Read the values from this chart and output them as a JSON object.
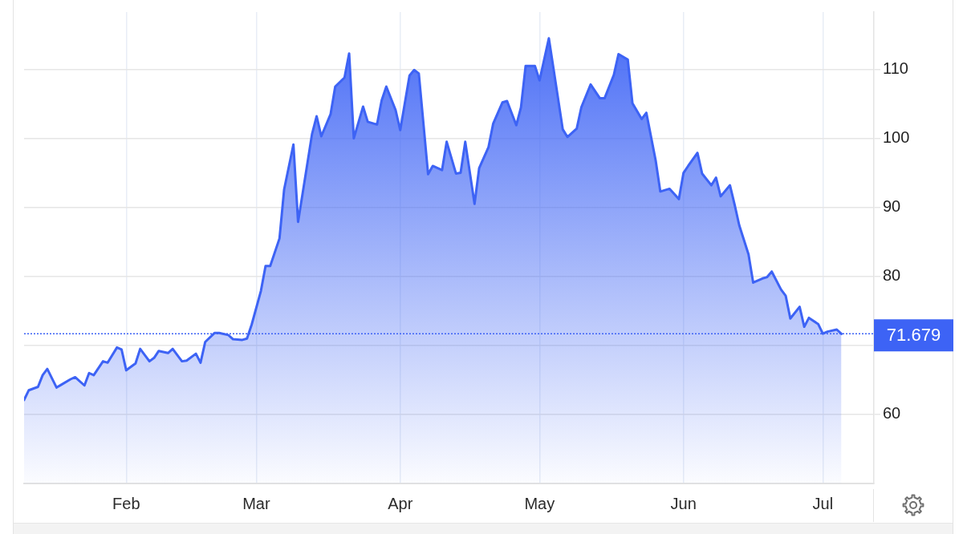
{
  "chart_data": {
    "type": "area",
    "color": "#3d63f5",
    "x": [
      "--01-10",
      "--01-11",
      "--01-13",
      "--01-14",
      "--01-15",
      "--01-17",
      "--01-18",
      "--01-20",
      "--01-21",
      "--01-23",
      "--01-24",
      "--01-25",
      "--01-27",
      "--01-28",
      "--01-30",
      "--01-31",
      "--02-01",
      "--02-03",
      "--02-04",
      "--02-06",
      "--02-07",
      "--02-08",
      "--02-10",
      "--02-11",
      "--02-13",
      "--02-14",
      "--02-16",
      "--02-17",
      "--02-18",
      "--02-20",
      "--02-21",
      "--02-23",
      "--02-24",
      "--02-26",
      "--02-27",
      "--02-28",
      "--03-02",
      "--03-03",
      "--03-04",
      "--03-06",
      "--03-07",
      "--03-09",
      "--03-10",
      "--03-11",
      "--03-13",
      "--03-14",
      "--03-15",
      "--03-17",
      "--03-18",
      "--03-20",
      "--03-21",
      "--03-22",
      "--03-24",
      "--03-25",
      "--03-27",
      "--03-28",
      "--03-29",
      "--03-31",
      "--04-01",
      "--04-03",
      "--04-04",
      "--04-05",
      "--04-07",
      "--04-08",
      "--04-10",
      "--04-11",
      "--04-13",
      "--04-14",
      "--04-15",
      "--04-17",
      "--04-18",
      "--04-20",
      "--04-21",
      "--04-23",
      "--04-24",
      "--04-26",
      "--04-27",
      "--04-28",
      "--04-30",
      "--05-01",
      "--05-03",
      "--05-04",
      "--05-06",
      "--05-07",
      "--05-09",
      "--05-10",
      "--05-12",
      "--05-14",
      "--05-15",
      "--05-17",
      "--05-18",
      "--05-20",
      "--05-21",
      "--05-23",
      "--05-24",
      "--05-26",
      "--05-27",
      "--05-29",
      "--05-31",
      "--06-01",
      "--06-02",
      "--06-04",
      "--06-05",
      "--06-07",
      "--06-08",
      "--06-09",
      "--06-11",
      "--06-12",
      "--06-13",
      "--06-15",
      "--06-16",
      "--06-18",
      "--06-19",
      "--06-20",
      "--06-22",
      "--06-23",
      "--06-24",
      "--06-26",
      "--06-27",
      "--06-28",
      "--06-30",
      "--07-01",
      "--07-02",
      "--07-04",
      "--07-05"
    ],
    "values": [
      62.1,
      63.5,
      64.0,
      65.7,
      66.6,
      63.9,
      64.3,
      65.1,
      65.4,
      64.2,
      66.0,
      65.7,
      67.7,
      67.5,
      69.7,
      69.4,
      66.4,
      67.4,
      69.5,
      67.7,
      68.2,
      69.2,
      68.9,
      69.5,
      67.7,
      67.8,
      68.8,
      67.5,
      70.5,
      71.8,
      71.8,
      71.5,
      70.9,
      70.8,
      71.0,
      73.0,
      77.9,
      81.5,
      81.5,
      85.5,
      92.6,
      99.1,
      87.9,
      92.1,
      100.6,
      103.2,
      100.3,
      103.5,
      107.5,
      108.8,
      112.3,
      100.0,
      104.6,
      102.4,
      102.0,
      105.5,
      107.5,
      104.1,
      101.2,
      109.1,
      109.9,
      109.4,
      94.8,
      96.0,
      95.4,
      99.5,
      94.9,
      95.0,
      99.5,
      90.5,
      95.7,
      98.7,
      102.1,
      105.2,
      105.4,
      101.9,
      104.5,
      110.5,
      110.5,
      108.4,
      114.5,
      110.1,
      101.3,
      100.2,
      101.4,
      104.5,
      107.8,
      105.8,
      105.8,
      109.2,
      112.2,
      111.4,
      105.1,
      102.8,
      103.7,
      96.8,
      92.3,
      92.7,
      91.2,
      95.0,
      96.0,
      97.9,
      94.9,
      93.2,
      94.3,
      91.6,
      93.2,
      90.4,
      87.4,
      83.2,
      79.1,
      79.7,
      79.9,
      80.7,
      78.1,
      77.2,
      73.9,
      75.6,
      72.7,
      74.0,
      73.1,
      71.7,
      72.0,
      72.3,
      71.679
    ],
    "xlim": [
      "--01-10",
      "--07-12"
    ],
    "xticks": [
      {
        "value": "--02-01",
        "label": "Feb"
      },
      {
        "value": "--03-01",
        "label": "Mar"
      },
      {
        "value": "--04-01",
        "label": "Apr"
      },
      {
        "value": "--05-01",
        "label": "May"
      },
      {
        "value": "--06-01",
        "label": "Jun"
      },
      {
        "value": "--07-01",
        "label": "Jul"
      }
    ],
    "ylim": [
      50,
      118.3
    ],
    "yticks": [
      60,
      {
        "value": 70,
        "label": null
      },
      80,
      90,
      100,
      110
    ],
    "grid": true,
    "ref_lines": [
      {
        "axis": "y",
        "value": 71.679,
        "label": "71.679",
        "color": "#3d63f5",
        "line_style": "dotted"
      }
    ]
  }
}
